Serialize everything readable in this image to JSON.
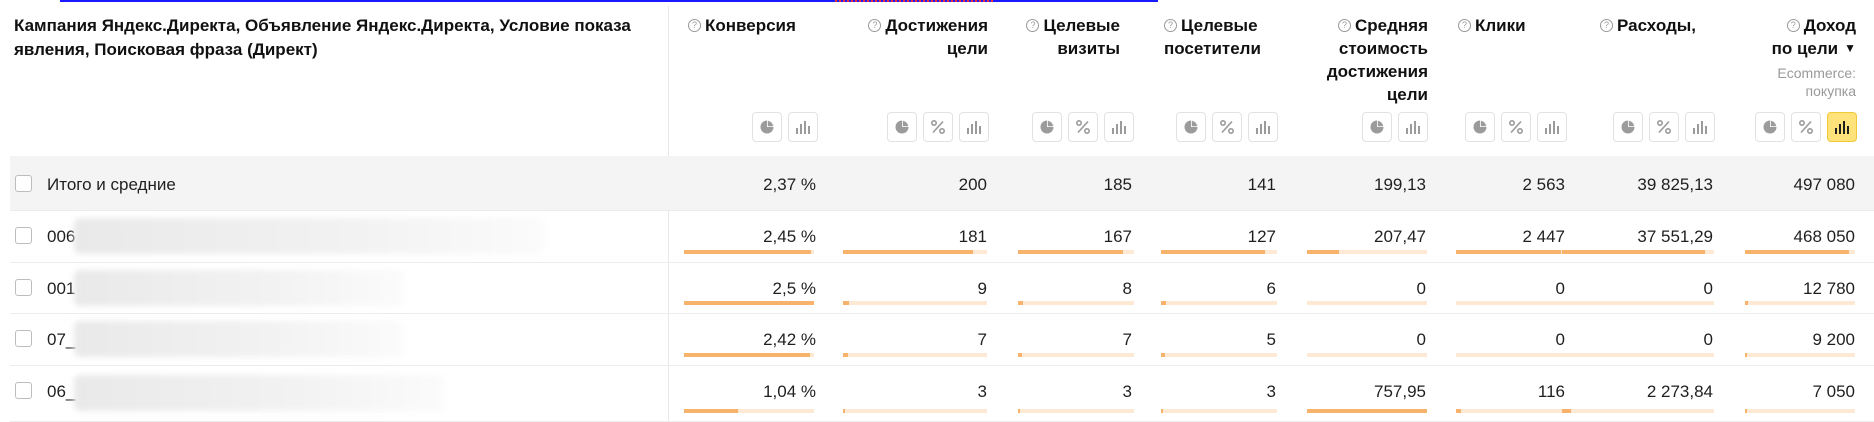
{
  "dimension_header": "Кампания Яндекс.Директа, Объявление Яндекс.Директа, Условие показа явления, Поисковая фраза (Директ)",
  "columns": [
    {
      "key": "conv",
      "label": "Конверсия",
      "sub": "",
      "buttons": [
        "pie-chart",
        "bar-chart"
      ]
    },
    {
      "key": "goals",
      "label": "Достижения цели",
      "sub": "",
      "buttons": [
        "pie-chart",
        "percent",
        "bar-chart"
      ]
    },
    {
      "key": "tvisits",
      "label": "Целевые визиты",
      "sub": "",
      "buttons": [
        "pie-chart",
        "percent",
        "bar-chart"
      ]
    },
    {
      "key": "tvisitors",
      "label": "Целевые посетители",
      "sub": "",
      "buttons": [
        "pie-chart",
        "percent",
        "bar-chart"
      ]
    },
    {
      "key": "cpa",
      "label": "Средняя стоимость достижения цели",
      "sub": "",
      "buttons": [
        "pie-chart",
        "bar-chart"
      ]
    },
    {
      "key": "clicks",
      "label": "Клики",
      "sub": "",
      "buttons": [
        "pie-chart",
        "percent",
        "bar-chart"
      ]
    },
    {
      "key": "costs",
      "label": "Расходы,",
      "sub": "",
      "buttons": [
        "pie-chart",
        "percent",
        "bar-chart"
      ]
    },
    {
      "key": "revenue",
      "label": "Доход по цели",
      "sub": "Ecommerce: покупка",
      "buttons": [
        "pie-chart",
        "percent",
        "bar-chart-active"
      ],
      "sort": "▼"
    }
  ],
  "total_row": {
    "label": "Итого и средние",
    "values": [
      "2,37 %",
      "200",
      "185",
      "141",
      "199,13",
      "2 563",
      "39 825,13",
      "497 080"
    ]
  },
  "rows": [
    {
      "label": "006",
      "values": [
        "2,45 %",
        "181",
        "167",
        "127",
        "207,47",
        "2 447",
        "37 551,29",
        "468 050"
      ],
      "bars": [
        0.98,
        0.905,
        0.903,
        0.9,
        0.27,
        0.955,
        0.943,
        0.942
      ]
    },
    {
      "label": "001",
      "values": [
        "2,5 %",
        "9",
        "8",
        "6",
        "0",
        "0",
        "0",
        "12 780"
      ],
      "bars": [
        1.0,
        0.045,
        0.043,
        0.043,
        0.0,
        0.0,
        0.0,
        0.026
      ]
    },
    {
      "label": "07_",
      "values": [
        "2,42 %",
        "7",
        "7",
        "5",
        "0",
        "0",
        "0",
        "9 200"
      ],
      "bars": [
        0.968,
        0.035,
        0.038,
        0.035,
        0.0,
        0.0,
        0.0,
        0.019
      ]
    },
    {
      "label": "06_",
      "values": [
        "1,04 %",
        "3",
        "3",
        "3",
        "757,95",
        "116",
        "2 273,84",
        "7 050"
      ],
      "bars": [
        0.416,
        0.015,
        0.016,
        0.021,
        1.0,
        0.045,
        0.057,
        0.014
      ]
    }
  ],
  "colors": {
    "bar_fill": "#f7b26b",
    "bar_track": "#fde9d4",
    "active_button": "#ffe27a",
    "total_bg": "#f4f4f4"
  }
}
